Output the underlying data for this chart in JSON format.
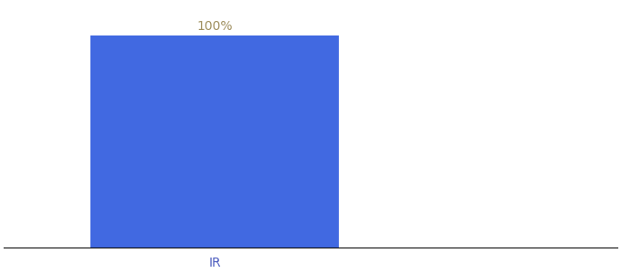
{
  "categories": [
    "IR"
  ],
  "values": [
    100
  ],
  "bar_color": "#4169e1",
  "label_color": "#a09060",
  "label_text": "100%",
  "xlabel_color": "#5060c0",
  "background_color": "#ffffff",
  "ylim": [
    0,
    115
  ],
  "bar_width": 0.65,
  "figsize": [
    6.8,
    3.0
  ],
  "dpi": 100,
  "spine_color": "#111111",
  "label_fontsize": 10,
  "tick_fontsize": 10
}
